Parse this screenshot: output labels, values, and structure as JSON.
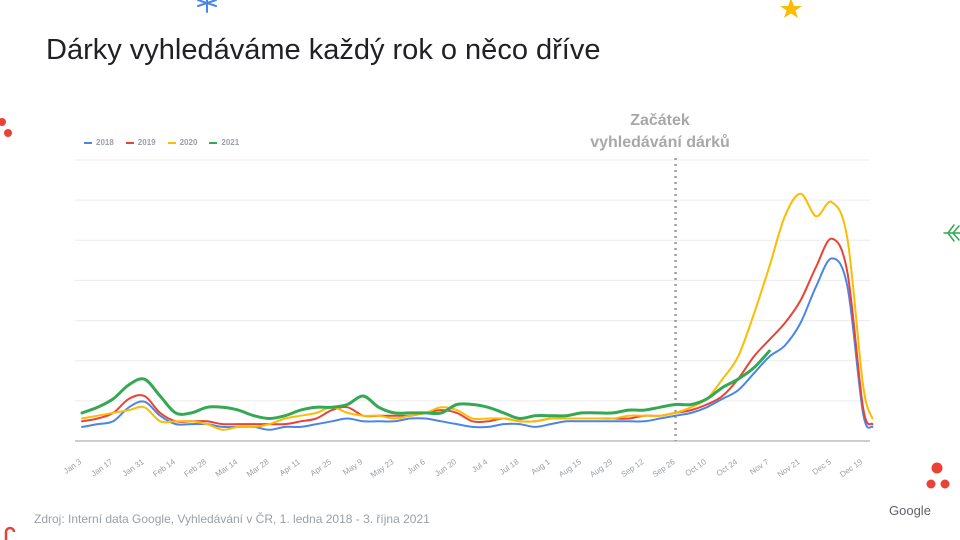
{
  "slide": {
    "title": "Dárky vyhledáváme každý rok o něco dříve",
    "source": "Zdroj: Interní data Google, Vyhledávání v ČR, 1. ledna 2018 - 3. října 2021",
    "logo": "Google"
  },
  "chart_data": {
    "type": "line",
    "title": "",
    "xlabel": "",
    "ylabel": "",
    "ylim": [
      0,
      100
    ],
    "grid": true,
    "legend_position": "top-left",
    "categories": [
      "Jan 3",
      "Jan 17",
      "Jan 31",
      "Feb 14",
      "Feb 28",
      "Mar 14",
      "Mar 28",
      "Apr 11",
      "Apr 25",
      "May 9",
      "May 23",
      "Jun 6",
      "Jun 20",
      "Jul 4",
      "Jul 18",
      "Aug 1",
      "Aug 15",
      "Aug 29",
      "Sep 12",
      "Sep 26",
      "Oct 10",
      "Oct 24",
      "Nov 7",
      "Nov 21",
      "Dec 5",
      "Dec 19"
    ],
    "annotation": {
      "text_line1": "Začátek",
      "text_line2": "vyhledávání dárků",
      "at": "Sep 26"
    },
    "series": [
      {
        "name": "2018",
        "color": "#4a86e8",
        "x": [
          0,
          0.5,
          1,
          1.5,
          2,
          2.5,
          3,
          3.5,
          4,
          4.5,
          5,
          5.5,
          6,
          6.5,
          7,
          7.5,
          8,
          8.5,
          9,
          9.5,
          10,
          10.5,
          11,
          11.5,
          12,
          12.5,
          13,
          13.5,
          14,
          14.5,
          15,
          15.5,
          16,
          16.5,
          17,
          17.5,
          18,
          18.5,
          19,
          19.5,
          20,
          20.5,
          21,
          21.5,
          22,
          22.5,
          23,
          23.5,
          24,
          24.5,
          25,
          25.3
        ],
        "values": [
          5,
          6,
          7,
          12,
          14,
          9,
          6,
          6,
          6,
          5,
          5,
          5,
          4,
          5,
          5,
          6,
          7,
          8,
          7,
          7,
          7,
          8,
          8,
          7,
          6,
          5,
          5,
          6,
          6,
          5,
          6,
          7,
          7,
          7,
          7,
          7,
          7,
          8,
          9,
          10,
          12,
          15,
          18,
          24,
          30,
          34,
          42,
          55,
          65,
          55,
          10,
          5
        ]
      },
      {
        "name": "2019",
        "color": "#ea4335",
        "x": [
          0,
          0.5,
          1,
          1.5,
          2,
          2.5,
          3,
          3.5,
          4,
          4.5,
          5,
          5.5,
          6,
          6.5,
          7,
          7.5,
          8,
          8.5,
          9,
          9.5,
          10,
          10.5,
          11,
          11.5,
          12,
          12.5,
          13,
          13.5,
          14,
          14.5,
          15,
          15.5,
          16,
          16.5,
          17,
          17.5,
          18,
          18.5,
          19,
          19.5,
          20,
          20.5,
          21,
          21.5,
          22,
          22.5,
          23,
          23.5,
          24,
          24.5,
          25,
          25.3
        ],
        "values": [
          7,
          8,
          10,
          15,
          16,
          10,
          7,
          7,
          7,
          6,
          6,
          6,
          6,
          6,
          7,
          8,
          11,
          12,
          9,
          9,
          9,
          9,
          10,
          11,
          10,
          7,
          7,
          8,
          7,
          7,
          8,
          8,
          8,
          8,
          8,
          8,
          9,
          9,
          10,
          11,
          13,
          16,
          22,
          30,
          36,
          42,
          50,
          62,
          72,
          60,
          12,
          6
        ]
      },
      {
        "name": "2020",
        "color": "#fbbc04",
        "x": [
          0,
          0.5,
          1,
          1.5,
          2,
          2.5,
          3,
          3.5,
          4,
          4.5,
          5,
          5.5,
          6,
          6.5,
          7,
          7.5,
          8,
          8.5,
          9,
          9.5,
          10,
          10.5,
          11,
          11.5,
          12,
          12.5,
          13,
          13.5,
          14,
          14.5,
          15,
          15.5,
          16,
          16.5,
          17,
          17.5,
          18,
          18.5,
          19,
          19.5,
          20,
          20.5,
          21,
          21.5,
          22,
          22.5,
          23,
          23.5,
          24,
          24.5,
          25,
          25.3
        ],
        "values": [
          8,
          9,
          10,
          11,
          12,
          7,
          7,
          7,
          6,
          4,
          5,
          5,
          6,
          8,
          9,
          10,
          12,
          10,
          9,
          9,
          8,
          9,
          10,
          12,
          11,
          8,
          8,
          8,
          7,
          7,
          8,
          8,
          8,
          8,
          8,
          9,
          9,
          9,
          10,
          12,
          15,
          22,
          30,
          45,
          62,
          80,
          88,
          80,
          85,
          72,
          20,
          8
        ]
      },
      {
        "name": "2021",
        "color": "#34a853",
        "x": [
          0,
          0.5,
          1,
          1.5,
          2,
          2.5,
          3,
          3.5,
          4,
          4.5,
          5,
          5.5,
          6,
          6.5,
          7,
          7.5,
          8,
          8.5,
          9,
          9.5,
          10,
          10.5,
          11,
          11.5,
          12,
          12.5,
          13,
          13.5,
          14,
          14.5,
          15,
          15.5,
          16,
          16.5,
          17,
          17.5,
          18,
          18.5,
          19,
          19.5,
          20,
          20.5,
          21,
          21.5,
          22
        ],
        "values": [
          10,
          12,
          15,
          20,
          22,
          16,
          10,
          10,
          12,
          12,
          11,
          9,
          8,
          9,
          11,
          12,
          12,
          13,
          16,
          12,
          10,
          10,
          10,
          10,
          13,
          13,
          12,
          10,
          8,
          9,
          9,
          9,
          10,
          10,
          10,
          11,
          11,
          12,
          13,
          13,
          15,
          19,
          22,
          26,
          32
        ]
      }
    ]
  }
}
